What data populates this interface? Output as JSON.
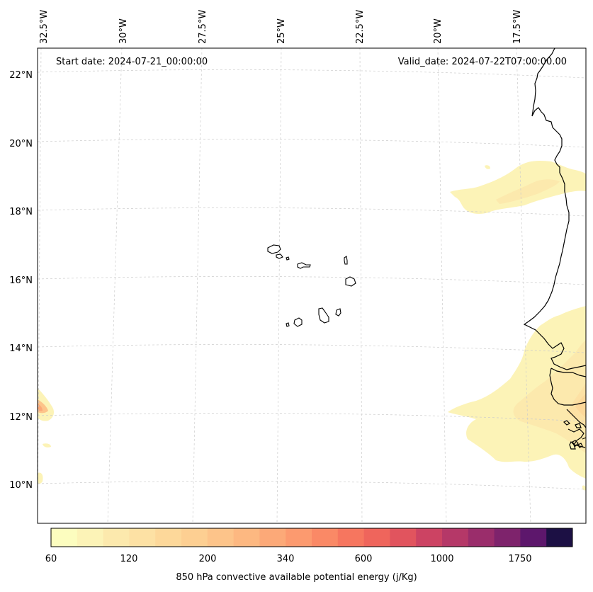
{
  "header": {
    "start_date": "Start date: 2024-07-21_00:00:00",
    "valid_date": "Valid_date: 2024-07-22T07:00:00.00"
  },
  "lon_labels": [
    "32.5°W",
    "30°W",
    "27.5°W",
    "25°W",
    "22.5°W",
    "20°W",
    "17.5°W"
  ],
  "lat_labels": [
    "22°N",
    "20°N",
    "18°N",
    "16°N",
    "14°N",
    "12°N",
    "10°N"
  ],
  "colorbar": {
    "caption": "850 hPa convective available potential energy (j/Kg)",
    "tick_labels": [
      "60",
      "120",
      "200",
      "340",
      "600",
      "1000",
      "1750"
    ],
    "colors": [
      "#fcfdbf",
      "#fcf3b7",
      "#fce9ad",
      "#fde1a4",
      "#fdd89a",
      "#fdcf92",
      "#fdc48a",
      "#fdb881",
      "#fca978",
      "#fc9a6f",
      "#fa8966",
      "#f6765f",
      "#ef655c",
      "#e1545e",
      "#cc4363",
      "#b53868",
      "#9a2d6b",
      "#7e236c",
      "#5d176c",
      "#1c1044"
    ]
  },
  "layers": {
    "grid": true,
    "coastline": true,
    "field": "850 hPa CAPE"
  }
}
